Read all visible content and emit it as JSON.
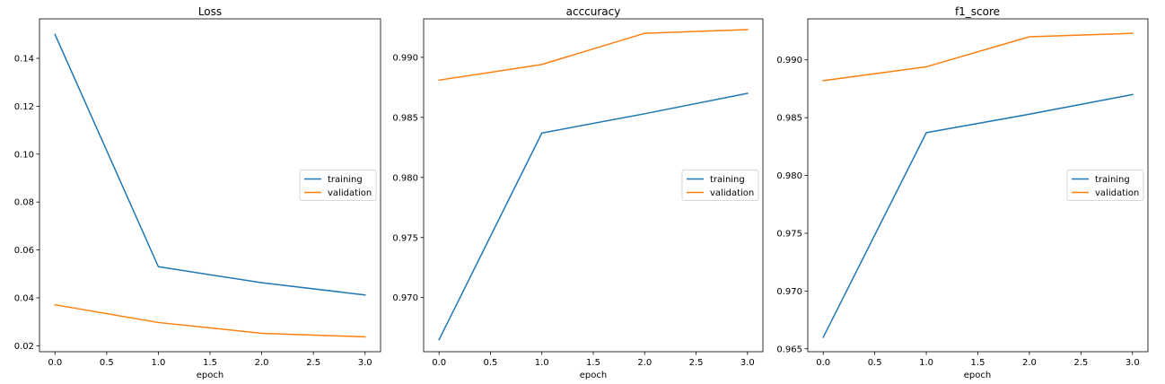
{
  "chart_data": [
    {
      "type": "line",
      "title": "Loss",
      "xlabel": "epoch",
      "ylabel": "",
      "x": [
        0,
        1,
        2,
        3
      ],
      "xlim": [
        -0.15,
        3.15
      ],
      "ylim": [
        0.0175,
        0.1565
      ],
      "xticks": [
        0.0,
        0.5,
        1.0,
        1.5,
        2.0,
        2.5,
        3.0
      ],
      "xtick_labels": [
        "0.0",
        "0.5",
        "1.0",
        "1.5",
        "2.0",
        "2.5",
        "3.0"
      ],
      "yticks": [
        0.02,
        0.04,
        0.06,
        0.08,
        0.1,
        0.12,
        0.14
      ],
      "ytick_labels": [
        "0.02",
        "0.04",
        "0.06",
        "0.08",
        "0.10",
        "0.12",
        "0.14"
      ],
      "grid": false,
      "legend_position": "center-right",
      "series": [
        {
          "name": "training",
          "color": "#1f77b4",
          "values": [
            0.15,
            0.053,
            0.0463,
            0.0412
          ]
        },
        {
          "name": "validation",
          "color": "#ff7f0e",
          "values": [
            0.0371,
            0.0297,
            0.0252,
            0.0237
          ]
        }
      ]
    },
    {
      "type": "line",
      "title": "acccuracy",
      "xlabel": "epoch",
      "ylabel": "",
      "x": [
        0,
        1,
        2,
        3
      ],
      "xlim": [
        -0.15,
        3.15
      ],
      "ylim": [
        0.9655,
        0.9932
      ],
      "xticks": [
        0.0,
        0.5,
        1.0,
        1.5,
        2.0,
        2.5,
        3.0
      ],
      "xtick_labels": [
        "0.0",
        "0.5",
        "1.0",
        "1.5",
        "2.0",
        "2.5",
        "3.0"
      ],
      "yticks": [
        0.97,
        0.975,
        0.98,
        0.985,
        0.99
      ],
      "ytick_labels": [
        "0.970",
        "0.975",
        "0.980",
        "0.985",
        "0.990"
      ],
      "grid": false,
      "legend_position": "center-right",
      "series": [
        {
          "name": "training",
          "color": "#1f77b4",
          "values": [
            0.9665,
            0.9837,
            0.9853,
            0.987
          ]
        },
        {
          "name": "validation",
          "color": "#ff7f0e",
          "values": [
            0.9881,
            0.9894,
            0.992,
            0.9923
          ]
        }
      ]
    },
    {
      "type": "line",
      "title": "f1_score",
      "xlabel": "epoch",
      "ylabel": "",
      "x": [
        0,
        1,
        2,
        3
      ],
      "xlim": [
        -0.15,
        3.15
      ],
      "ylim": [
        0.96475,
        0.99355
      ],
      "xticks": [
        0.0,
        0.5,
        1.0,
        1.5,
        2.0,
        2.5,
        3.0
      ],
      "xtick_labels": [
        "0.0",
        "0.5",
        "1.0",
        "1.5",
        "2.0",
        "2.5",
        "3.0"
      ],
      "yticks": [
        0.965,
        0.97,
        0.975,
        0.98,
        0.985,
        0.99
      ],
      "ytick_labels": [
        "0.965",
        "0.970",
        "0.975",
        "0.980",
        "0.985",
        "0.990"
      ],
      "grid": false,
      "legend_position": "center-right",
      "series": [
        {
          "name": "training",
          "color": "#1f77b4",
          "values": [
            0.966,
            0.9837,
            0.9853,
            0.987
          ]
        },
        {
          "name": "validation",
          "color": "#ff7f0e",
          "values": [
            0.9882,
            0.9894,
            0.992,
            0.9923
          ]
        }
      ]
    }
  ]
}
